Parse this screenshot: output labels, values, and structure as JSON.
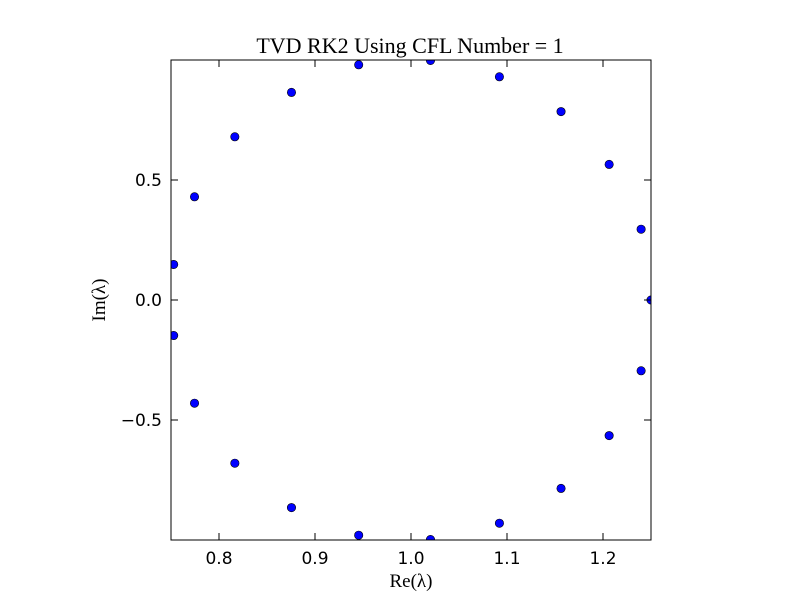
{
  "chart_data": {
    "type": "scatter",
    "title": "TVD RK2 Using CFL Number = 1",
    "xlabel": "Re(λ)",
    "ylabel": "Im(λ)",
    "xlim": [
      0.75,
      1.25
    ],
    "ylim": [
      -1.0,
      1.0
    ],
    "xticks": [
      0.8,
      0.9,
      1.0,
      1.1,
      1.2
    ],
    "xtick_labels": [
      "0.8",
      "0.9",
      "1.0",
      "1.1",
      "1.2"
    ],
    "yticks": [
      -0.5,
      0.0,
      0.5
    ],
    "ytick_labels": [
      "−0.5",
      "0.0",
      "0.5"
    ],
    "grid": false,
    "marker_color": "#0000ff",
    "series": [
      {
        "x": [
          1.25,
          1.2397,
          1.2064,
          1.1563,
          1.0921,
          1.0203,
          0.9455,
          0.8755,
          0.8165,
          0.7745,
          0.7528,
          0.7528,
          0.7745,
          0.8165,
          0.8755,
          0.9455,
          1.0203,
          1.0921,
          1.1563,
          1.2064,
          1.2397
        ],
        "y": [
          0.0,
          0.295,
          0.565,
          0.785,
          0.93,
          0.998,
          0.98,
          0.865,
          0.68,
          0.43,
          0.148,
          -0.148,
          -0.43,
          -0.68,
          -0.865,
          -0.98,
          -0.998,
          -0.93,
          -0.785,
          -0.565,
          -0.295
        ]
      }
    ]
  }
}
